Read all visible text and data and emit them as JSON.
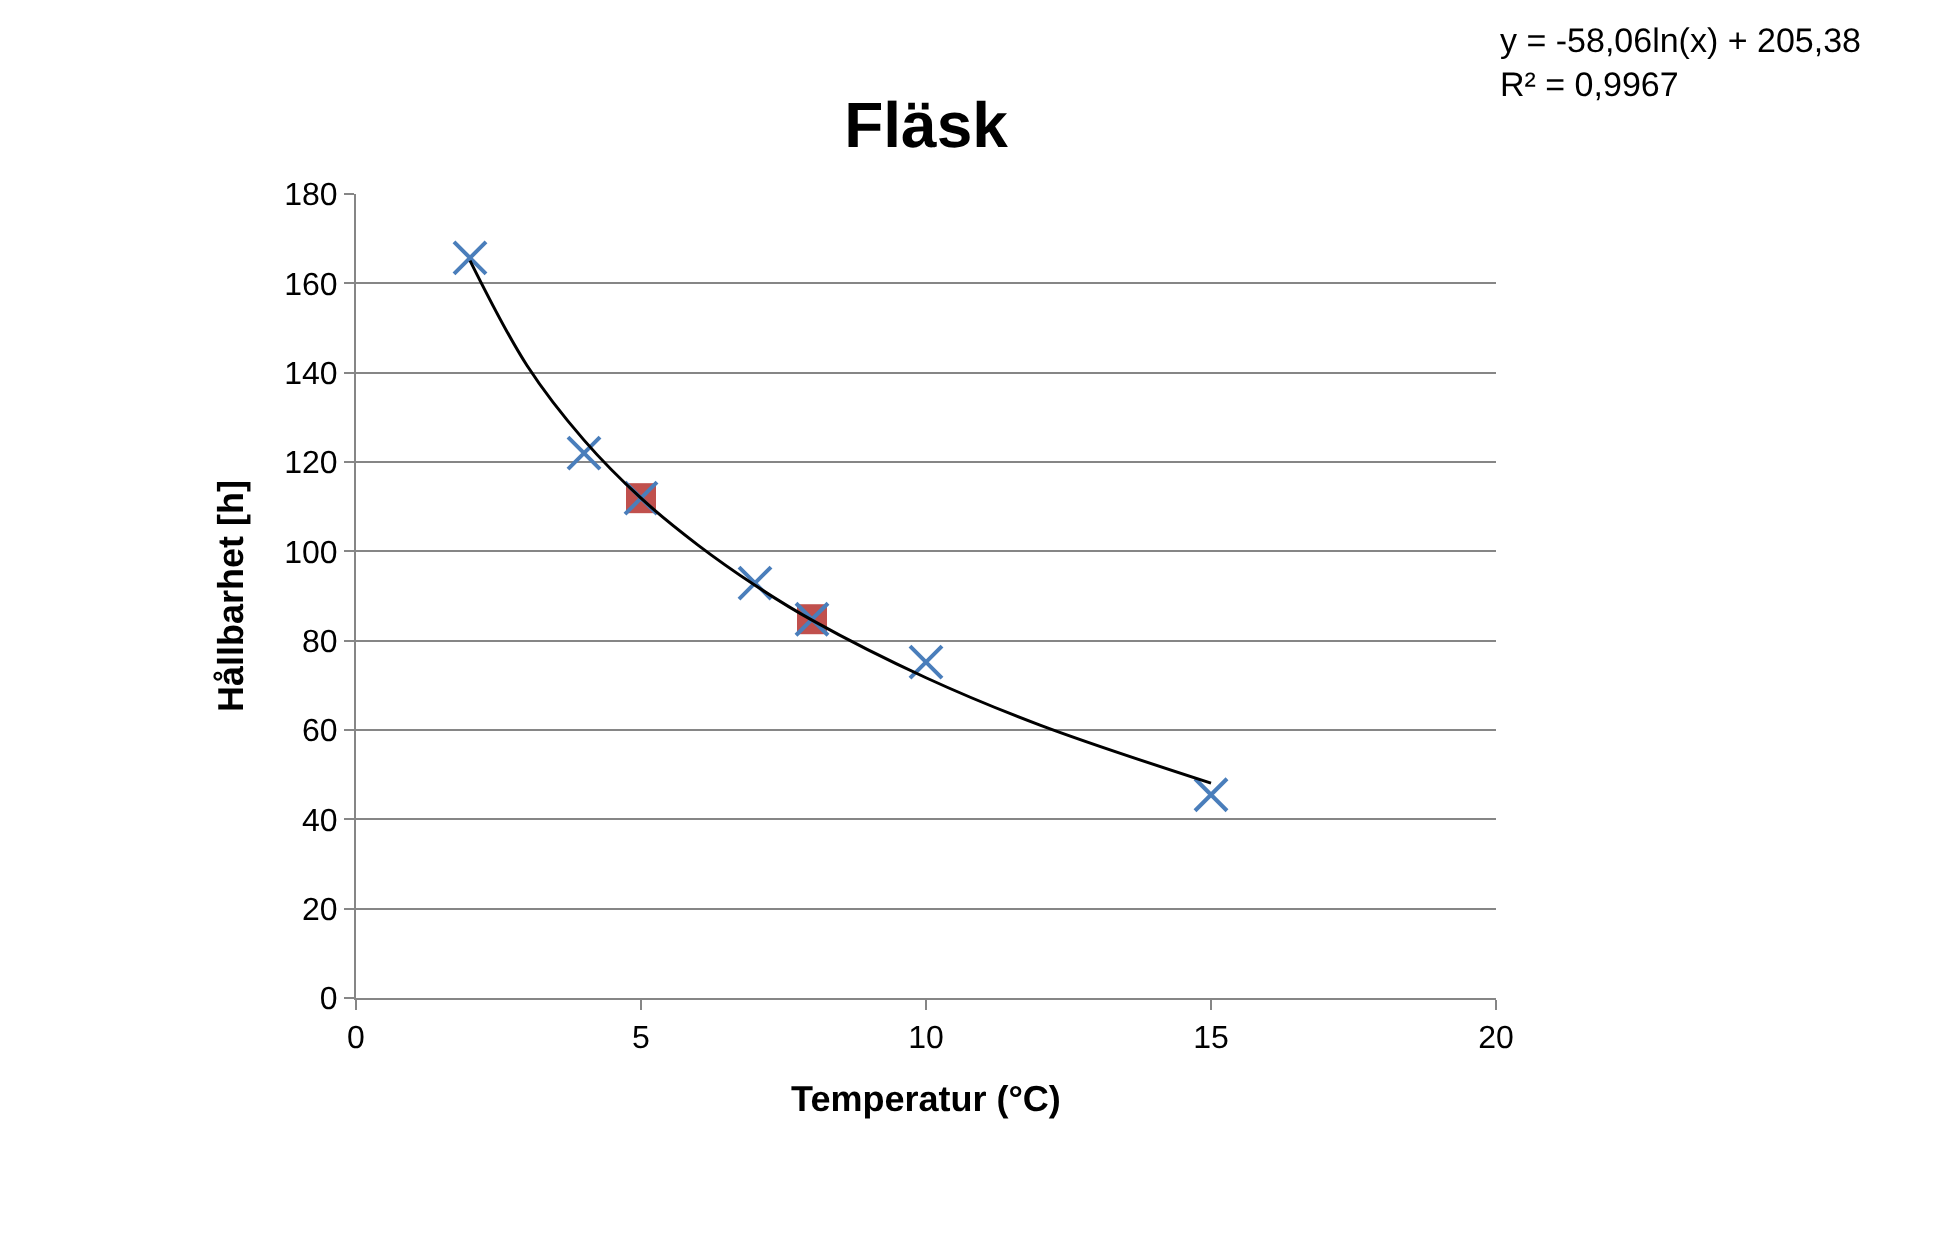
{
  "chart_data": {
    "type": "scatter",
    "title": "Fläsk",
    "xlabel": "Temperatur (°C)",
    "ylabel": "Hållbarhet [h]",
    "xlim": [
      0,
      20
    ],
    "xticks": [
      0,
      5,
      10,
      15,
      20
    ],
    "ylim": [
      0,
      180
    ],
    "yticks": [
      0,
      20,
      40,
      60,
      80,
      100,
      120,
      140,
      160,
      180
    ],
    "grid": "y",
    "series": [
      {
        "marker": "square",
        "color": "#c0504d",
        "x": [
          5,
          8
        ],
        "values": [
          111.9,
          84.8
        ]
      },
      {
        "marker": "cross",
        "color": "#4a7ebb",
        "x": [
          2,
          4,
          5,
          7,
          8,
          10,
          15
        ],
        "values": [
          165.7,
          122,
          111.9,
          92.9,
          84.8,
          75.2,
          45.5
        ]
      },
      {
        "type": "line",
        "color": "#000000",
        "line_style": "solid",
        "x": [
          2,
          3,
          4,
          5,
          6,
          7,
          8,
          10,
          12,
          15
        ],
        "values": [
          165.1,
          141.6,
          124.9,
          111.9,
          101.4,
          92.4,
          84.6,
          71.7,
          61.1,
          48.1
        ]
      }
    ],
    "annotations": [
      "y = -58,06ln(x) + 205,38\nR² = 0,9967"
    ]
  }
}
